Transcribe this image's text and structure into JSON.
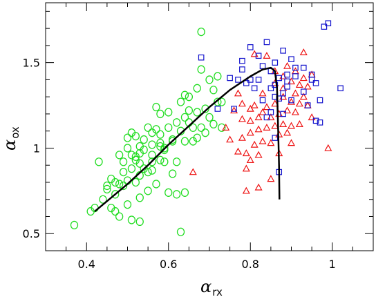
{
  "chart_data": {
    "type": "scatter",
    "title": "",
    "xlabel": "α",
    "xlabel_sub": "rx",
    "ylabel": "α",
    "ylabel_sub": "ox",
    "xlim": [
      0.3,
      1.1
    ],
    "ylim": [
      0.4,
      1.85
    ],
    "xticks": [
      0.4,
      0.6,
      0.8,
      1.0
    ],
    "xtick_labels": [
      "0.4",
      "0.6",
      "0.8",
      "1"
    ],
    "yticks": [
      0.5,
      1.0,
      1.5
    ],
    "ytick_labels": [
      "0.5",
      "1",
      "1.5"
    ],
    "x_minor_step": 0.05,
    "y_minor_step": 0.1,
    "grid": false,
    "legend": "none",
    "series": [
      {
        "marker": "circle",
        "color": "#22dd22",
        "points": [
          [
            0.37,
            0.55
          ],
          [
            0.41,
            0.63
          ],
          [
            0.42,
            0.65
          ],
          [
            0.43,
            0.92
          ],
          [
            0.44,
            0.7
          ],
          [
            0.45,
            0.78
          ],
          [
            0.45,
            0.76
          ],
          [
            0.46,
            0.65
          ],
          [
            0.46,
            0.82
          ],
          [
            0.47,
            0.73
          ],
          [
            0.47,
            0.63
          ],
          [
            0.47,
            0.8
          ],
          [
            0.48,
            0.79
          ],
          [
            0.48,
            0.6
          ],
          [
            0.48,
            0.96
          ],
          [
            0.49,
            0.86
          ],
          [
            0.49,
            0.78
          ],
          [
            0.49,
            0.92
          ],
          [
            0.5,
            0.81
          ],
          [
            0.5,
            1.0
          ],
          [
            0.5,
            1.06
          ],
          [
            0.5,
            0.67
          ],
          [
            0.51,
            0.58
          ],
          [
            0.51,
            0.88
          ],
          [
            0.51,
            0.96
          ],
          [
            0.51,
            1.09
          ],
          [
            0.52,
            0.95
          ],
          [
            0.52,
            0.8
          ],
          [
            0.52,
            0.93
          ],
          [
            0.52,
            1.07
          ],
          [
            0.53,
            0.91
          ],
          [
            0.53,
            0.97
          ],
          [
            0.53,
            1.01
          ],
          [
            0.53,
            0.84
          ],
          [
            0.53,
            0.71
          ],
          [
            0.53,
            0.57
          ],
          [
            0.54,
            0.99
          ],
          [
            0.54,
            1.05
          ],
          [
            0.54,
            0.88
          ],
          [
            0.55,
            0.86
          ],
          [
            0.55,
            1.12
          ],
          [
            0.55,
            0.75
          ],
          [
            0.56,
            0.87
          ],
          [
            0.56,
            0.96
          ],
          [
            0.56,
            1.09
          ],
          [
            0.56,
            1.02
          ],
          [
            0.56,
            0.92
          ],
          [
            0.57,
            1.11
          ],
          [
            0.57,
            1.24
          ],
          [
            0.57,
            0.79
          ],
          [
            0.58,
            1.01
          ],
          [
            0.58,
            0.93
          ],
          [
            0.58,
            1.08
          ],
          [
            0.58,
            1.2
          ],
          [
            0.58,
            1.03
          ],
          [
            0.59,
            0.99
          ],
          [
            0.59,
            1.0
          ],
          [
            0.59,
            0.92
          ],
          [
            0.6,
            1.12
          ],
          [
            0.6,
            1.21
          ],
          [
            0.6,
            0.74
          ],
          [
            0.61,
            1.05
          ],
          [
            0.61,
            0.85
          ],
          [
            0.61,
            1.04
          ],
          [
            0.62,
            1.15
          ],
          [
            0.62,
            0.92
          ],
          [
            0.62,
            0.73
          ],
          [
            0.63,
            1.27
          ],
          [
            0.63,
            0.51
          ],
          [
            0.63,
            1.1
          ],
          [
            0.64,
            1.31
          ],
          [
            0.64,
            1.18
          ],
          [
            0.64,
            1.04
          ],
          [
            0.64,
            0.74
          ],
          [
            0.65,
            1.22
          ],
          [
            0.65,
            1.15
          ],
          [
            0.65,
            1.3
          ],
          [
            0.66,
            1.04
          ],
          [
            0.66,
            1.12
          ],
          [
            0.67,
            1.21
          ],
          [
            0.67,
            1.35
          ],
          [
            0.67,
            1.06
          ],
          [
            0.68,
            1.46
          ],
          [
            0.68,
            1.12
          ],
          [
            0.68,
            1.68
          ],
          [
            0.69,
            1.09
          ],
          [
            0.69,
            1.23
          ],
          [
            0.7,
            1.4
          ],
          [
            0.7,
            1.18
          ],
          [
            0.71,
            1.34
          ],
          [
            0.71,
            1.14
          ],
          [
            0.72,
            1.27
          ],
          [
            0.72,
            1.42
          ],
          [
            0.73,
            1.27
          ],
          [
            0.73,
            1.12
          ]
        ]
      },
      {
        "marker": "triangle",
        "color": "#ee1111",
        "points": [
          [
            0.66,
            0.86
          ],
          [
            0.74,
            1.12
          ],
          [
            0.75,
            1.05
          ],
          [
            0.76,
            1.22
          ],
          [
            0.77,
            0.98
          ],
          [
            0.77,
            1.32
          ],
          [
            0.78,
            1.17
          ],
          [
            0.78,
            1.06
          ],
          [
            0.78,
            1.26
          ],
          [
            0.79,
            0.97
          ],
          [
            0.79,
            0.75
          ],
          [
            0.79,
            0.88
          ],
          [
            0.8,
            1.09
          ],
          [
            0.8,
            1.16
          ],
          [
            0.8,
            1.23
          ],
          [
            0.8,
            0.93
          ],
          [
            0.81,
            1.02
          ],
          [
            0.81,
            1.25
          ],
          [
            0.81,
            1.55
          ],
          [
            0.82,
            1.11
          ],
          [
            0.82,
            1.18
          ],
          [
            0.82,
            0.96
          ],
          [
            0.82,
            0.77
          ],
          [
            0.83,
            1.04
          ],
          [
            0.83,
            1.21
          ],
          [
            0.83,
            1.32
          ],
          [
            0.84,
            1.12
          ],
          [
            0.84,
            1.24
          ],
          [
            0.84,
            1.54
          ],
          [
            0.85,
            1.03
          ],
          [
            0.85,
            1.18
          ],
          [
            0.85,
            0.82
          ],
          [
            0.86,
            1.26
          ],
          [
            0.86,
            1.13
          ],
          [
            0.86,
            1.45
          ],
          [
            0.86,
            1.38
          ],
          [
            0.87,
            1.2
          ],
          [
            0.87,
            1.08
          ],
          [
            0.87,
            0.97
          ],
          [
            0.88,
            1.35
          ],
          [
            0.88,
            1.3
          ],
          [
            0.88,
            1.14
          ],
          [
            0.88,
            1.42
          ],
          [
            0.89,
            1.22
          ],
          [
            0.89,
            1.09
          ],
          [
            0.89,
            1.48
          ],
          [
            0.9,
            1.27
          ],
          [
            0.9,
            1.39
          ],
          [
            0.9,
            1.13
          ],
          [
            0.9,
            1.03
          ],
          [
            0.91,
            1.32
          ],
          [
            0.91,
            1.45
          ],
          [
            0.91,
            1.21
          ],
          [
            0.92,
            1.37
          ],
          [
            0.92,
            1.26
          ],
          [
            0.92,
            1.14
          ],
          [
            0.93,
            1.3
          ],
          [
            0.93,
            1.56
          ],
          [
            0.93,
            1.41
          ],
          [
            0.94,
            1.25
          ],
          [
            0.94,
            1.36
          ],
          [
            0.95,
            1.43
          ],
          [
            0.95,
            1.18
          ],
          [
            0.99,
            1.0
          ]
        ]
      },
      {
        "marker": "square",
        "color": "#1111cc",
        "points": [
          [
            0.68,
            1.53
          ],
          [
            0.72,
            1.23
          ],
          [
            0.75,
            1.41
          ],
          [
            0.76,
            1.23
          ],
          [
            0.77,
            1.4
          ],
          [
            0.78,
            1.46
          ],
          [
            0.78,
            1.51
          ],
          [
            0.79,
            1.38
          ],
          [
            0.8,
            1.59
          ],
          [
            0.8,
            1.4
          ],
          [
            0.81,
            1.35
          ],
          [
            0.82,
            1.54
          ],
          [
            0.82,
            1.4
          ],
          [
            0.83,
            1.48
          ],
          [
            0.83,
            1.28
          ],
          [
            0.84,
            1.18
          ],
          [
            0.84,
            1.62
          ],
          [
            0.85,
            1.45
          ],
          [
            0.85,
            1.35
          ],
          [
            0.85,
            1.21
          ],
          [
            0.86,
            1.3
          ],
          [
            0.86,
            1.06
          ],
          [
            0.86,
            1.37
          ],
          [
            0.86,
            1.5
          ],
          [
            0.87,
            1.29
          ],
          [
            0.87,
            1.41
          ],
          [
            0.87,
            0.86
          ],
          [
            0.88,
            1.57
          ],
          [
            0.88,
            1.32
          ],
          [
            0.88,
            1.2
          ],
          [
            0.89,
            1.39
          ],
          [
            0.89,
            1.36
          ],
          [
            0.89,
            1.43
          ],
          [
            0.9,
            1.52
          ],
          [
            0.9,
            1.28
          ],
          [
            0.91,
            1.47
          ],
          [
            0.91,
            1.42
          ],
          [
            0.93,
            1.33
          ],
          [
            0.93,
            1.47
          ],
          [
            0.94,
            1.25
          ],
          [
            0.95,
            1.43
          ],
          [
            0.95,
            1.4
          ],
          [
            0.96,
            1.38
          ],
          [
            0.96,
            1.16
          ],
          [
            0.97,
            1.28
          ],
          [
            0.97,
            1.15
          ],
          [
            0.98,
            1.71
          ],
          [
            0.99,
            1.73
          ],
          [
            1.02,
            1.35
          ]
        ]
      },
      {
        "marker": "line",
        "color": "#000000",
        "points": [
          [
            0.42,
            0.63
          ],
          [
            0.45,
            0.69
          ],
          [
            0.5,
            0.79
          ],
          [
            0.55,
            0.9
          ],
          [
            0.6,
            1.02
          ],
          [
            0.65,
            1.13
          ],
          [
            0.7,
            1.24
          ],
          [
            0.75,
            1.34
          ],
          [
            0.8,
            1.42
          ],
          [
            0.83,
            1.46
          ],
          [
            0.85,
            1.47
          ],
          [
            0.86,
            1.45
          ],
          [
            0.865,
            1.35
          ],
          [
            0.868,
            1.1
          ],
          [
            0.87,
            0.9
          ],
          [
            0.871,
            0.7
          ]
        ]
      }
    ]
  }
}
